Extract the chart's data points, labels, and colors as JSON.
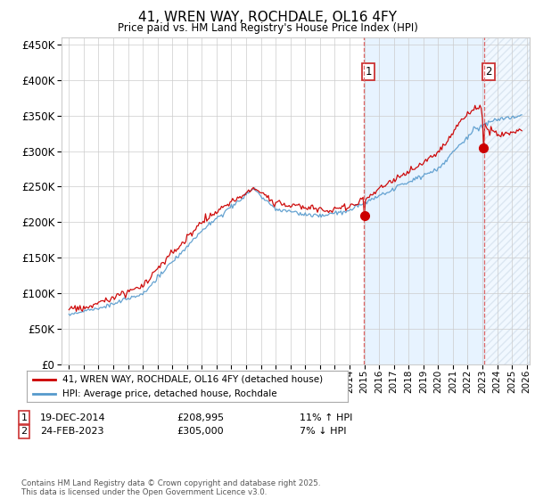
{
  "title": "41, WREN WAY, ROCHDALE, OL16 4FY",
  "subtitle": "Price paid vs. HM Land Registry's House Price Index (HPI)",
  "legend_label_red": "41, WREN WAY, ROCHDALE, OL16 4FY (detached house)",
  "legend_label_blue": "HPI: Average price, detached house, Rochdale",
  "transaction1_date": "19-DEC-2014",
  "transaction1_price": "£208,995",
  "transaction1_hpi": "11% ↑ HPI",
  "transaction1_year": 2014.97,
  "transaction1_price_val": 208995,
  "transaction2_date": "24-FEB-2023",
  "transaction2_price": "£305,000",
  "transaction2_hpi": "7% ↓ HPI",
  "transaction2_year": 2023.12,
  "transaction2_price_val": 305000,
  "footer": "Contains HM Land Registry data © Crown copyright and database right 2025.\nThis data is licensed under the Open Government Licence v3.0.",
  "red_color": "#cc0000",
  "blue_color": "#5599cc",
  "shade_color": "#ddeeff",
  "dashed_color": "#dd6666",
  "bg_color": "#ffffff",
  "grid_color": "#cccccc",
  "ylim_min": 0,
  "ylim_max": 460000,
  "xlim_min": 1994.5,
  "xlim_max": 2026.2
}
